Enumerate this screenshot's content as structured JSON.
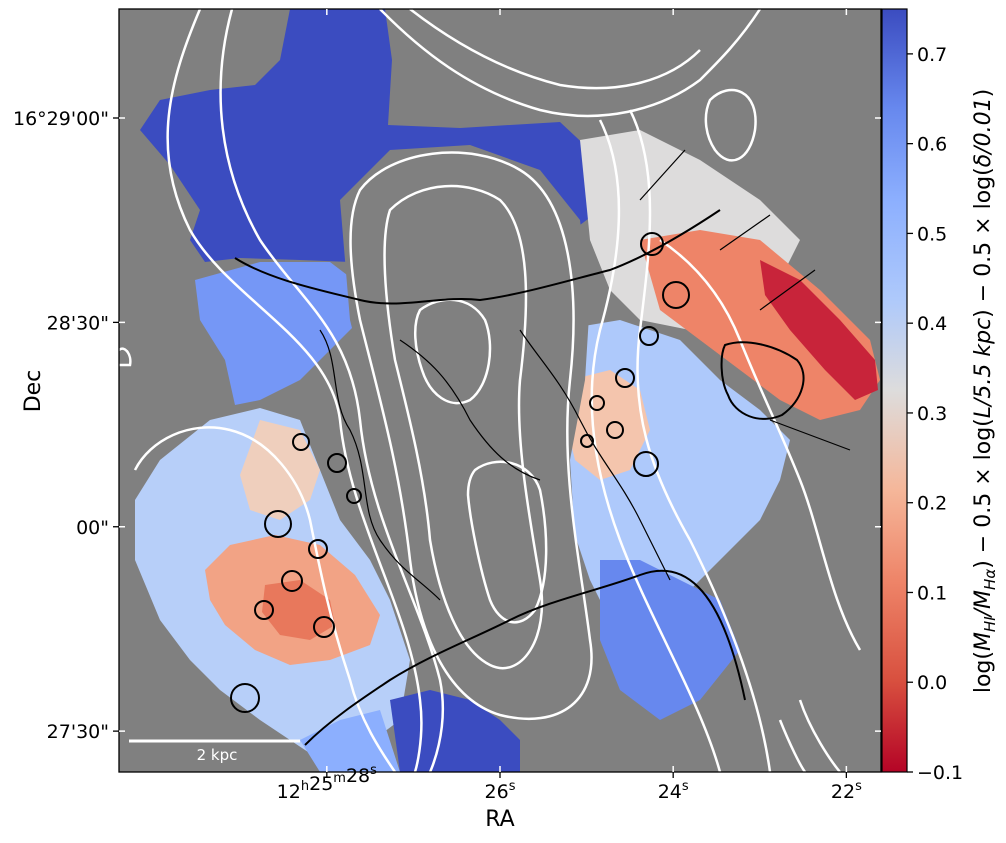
{
  "chart_data": {
    "type": "heatmap",
    "xlabel": "RA",
    "ylabel": "Dec",
    "x_ticks": [
      {
        "label": "12h25m28s",
        "main": "12",
        "h": "h",
        "m1": "25",
        "m": "m",
        "s1": "28",
        "s": "s",
        "value_sec": 28
      },
      {
        "label": "26s",
        "main": "26",
        "s": "s",
        "value_sec": 26
      },
      {
        "label": "24s",
        "main": "24",
        "s": "s",
        "value_sec": 24
      },
      {
        "label": "22s",
        "main": "22",
        "s": "s",
        "value_sec": 22
      }
    ],
    "y_ticks": [
      {
        "label": "16°29'00\"",
        "value_arcsec": 90
      },
      {
        "label": "28'30\"",
        "value_arcsec": 60
      },
      {
        "label": "00\"",
        "value_arcsec": 30
      },
      {
        "label": "27'30\"",
        "value_arcsec": 0
      }
    ],
    "colorbar": {
      "label": "log(M_HI/M_Hα) − 0.5 × log(L/5.5 kpc) − 0.5 × log(δ/0.01)",
      "label_parts": {
        "a": "log(",
        "b": "M",
        "b_sub": "HI",
        "c": "/",
        "d": "M",
        "d_sub": "Hα",
        "e": ") − 0.5 × log(",
        "f": "L/5.5 kpc",
        "g": ") − 0.5 × log(",
        "h": "δ/0.01",
        "i": ")"
      },
      "min": -0.1,
      "max": 0.75,
      "ticks": [
        {
          "label": "0.7",
          "value": 0.7
        },
        {
          "label": "0.6",
          "value": 0.6
        },
        {
          "label": "0.5",
          "value": 0.5
        },
        {
          "label": "0.4",
          "value": 0.4
        },
        {
          "label": "0.3",
          "value": 0.3
        },
        {
          "label": "0.2",
          "value": 0.2
        },
        {
          "label": "0.1",
          "value": 0.1
        },
        {
          "label": "0.0",
          "value": 0.0
        },
        {
          "label": "−0.1",
          "value": -0.1
        }
      ],
      "colormap": "coolwarm_r"
    },
    "background_color": "#808080",
    "scale_bar": {
      "label": "2 kpc"
    }
  }
}
